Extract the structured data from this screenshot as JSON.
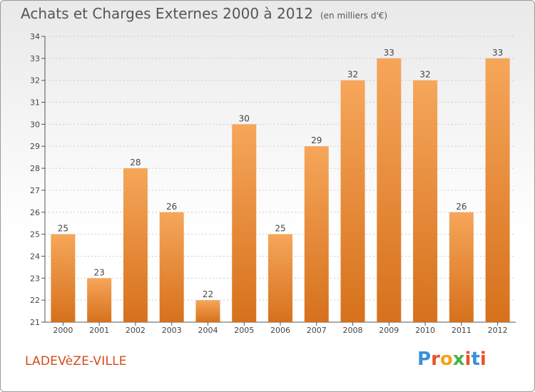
{
  "header": {
    "title": "Achats et Charges Externes 2000 à 2012",
    "unit": "(en milliers d'€)"
  },
  "commune": "LADEVèZE-VILLE",
  "logo": {
    "text": "Proxiti",
    "letters": [
      "P",
      "r",
      "o",
      "x",
      "i",
      "t",
      "i"
    ],
    "colors": [
      "#3a8fd8",
      "#e8542a",
      "#f4a11c",
      "#4bb04a",
      "#e8542a",
      "#3a8fd8",
      "#e8542a"
    ]
  },
  "colors": {
    "bar_top": "#f6a65a",
    "bar_bottom": "#d6711c",
    "axis": "#555555",
    "grid": "#cccccc"
  },
  "chart_data": {
    "type": "bar",
    "categories": [
      "2000",
      "2001",
      "2002",
      "2003",
      "2004",
      "2005",
      "2006",
      "2007",
      "2008",
      "2009",
      "2010",
      "2011",
      "2012"
    ],
    "values": [
      25,
      23,
      28,
      26,
      22,
      30,
      25,
      29,
      32,
      33,
      32,
      26,
      33
    ],
    "ylim": [
      21,
      34
    ],
    "yticks": [
      21,
      22,
      23,
      24,
      25,
      26,
      27,
      28,
      29,
      30,
      31,
      32,
      33,
      34
    ],
    "grid": true
  }
}
